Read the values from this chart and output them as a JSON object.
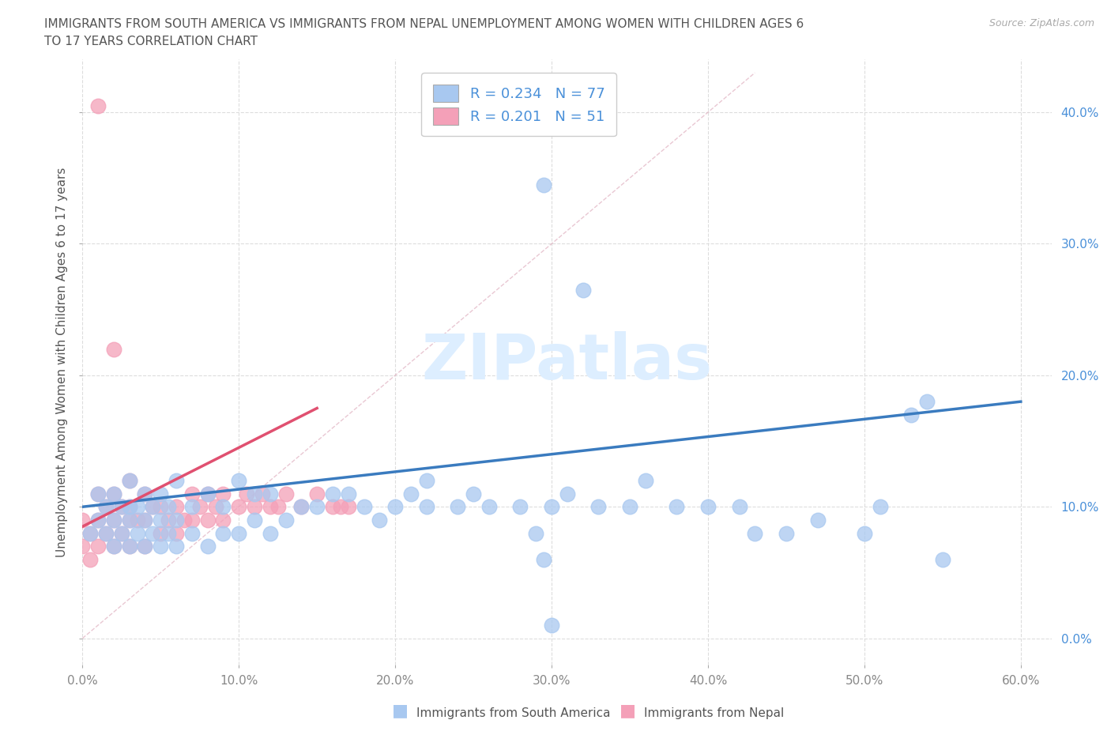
{
  "title_line1": "IMMIGRANTS FROM SOUTH AMERICA VS IMMIGRANTS FROM NEPAL UNEMPLOYMENT AMONG WOMEN WITH CHILDREN AGES 6",
  "title_line2": "TO 17 YEARS CORRELATION CHART",
  "source": "Source: ZipAtlas.com",
  "ylabel": "Unemployment Among Women with Children Ages 6 to 17 years",
  "xlim": [
    0.0,
    0.62
  ],
  "ylim": [
    -0.02,
    0.44
  ],
  "xticks": [
    0.0,
    0.1,
    0.2,
    0.3,
    0.4,
    0.5,
    0.6
  ],
  "xticklabels": [
    "0.0%",
    "10.0%",
    "20.0%",
    "30.0%",
    "40.0%",
    "50.0%",
    "60.0%"
  ],
  "yticks": [
    0.0,
    0.1,
    0.2,
    0.3,
    0.4
  ],
  "yticklabels": [
    "0.0%",
    "10.0%",
    "20.0%",
    "30.0%",
    "40.0%"
  ],
  "legend_text_sa": "R = 0.234   N = 77",
  "legend_text_np": "R = 0.201   N = 51",
  "color_sa": "#a8c8f0",
  "color_np": "#f4a0b8",
  "trendline_sa_color": "#3a7bbf",
  "trendline_np_color": "#e05070",
  "trendline_np_dashed_color": "#e8b0c0",
  "background_color": "#ffffff",
  "grid_color": "#dddddd",
  "title_color": "#555555",
  "watermark_color": "#ddeeff",
  "sa_x": [
    0.005,
    0.01,
    0.01,
    0.015,
    0.015,
    0.02,
    0.02,
    0.02,
    0.025,
    0.025,
    0.03,
    0.03,
    0.03,
    0.03,
    0.035,
    0.035,
    0.04,
    0.04,
    0.04,
    0.045,
    0.045,
    0.05,
    0.05,
    0.05,
    0.055,
    0.055,
    0.06,
    0.06,
    0.06,
    0.07,
    0.07,
    0.08,
    0.08,
    0.09,
    0.09,
    0.1,
    0.1,
    0.11,
    0.11,
    0.12,
    0.12,
    0.13,
    0.14,
    0.15,
    0.16,
    0.17,
    0.18,
    0.19,
    0.2,
    0.21,
    0.22,
    0.22,
    0.24,
    0.25,
    0.26,
    0.28,
    0.29,
    0.3,
    0.31,
    0.33,
    0.35,
    0.36,
    0.38,
    0.4,
    0.42,
    0.43,
    0.45,
    0.47,
    0.5,
    0.51,
    0.53,
    0.54,
    0.55,
    0.295,
    0.32,
    0.295,
    0.3
  ],
  "sa_y": [
    0.08,
    0.09,
    0.11,
    0.08,
    0.1,
    0.07,
    0.09,
    0.11,
    0.08,
    0.1,
    0.07,
    0.09,
    0.1,
    0.12,
    0.08,
    0.1,
    0.07,
    0.09,
    0.11,
    0.08,
    0.1,
    0.07,
    0.09,
    0.11,
    0.08,
    0.1,
    0.07,
    0.09,
    0.12,
    0.08,
    0.1,
    0.07,
    0.11,
    0.08,
    0.1,
    0.08,
    0.12,
    0.09,
    0.11,
    0.08,
    0.11,
    0.09,
    0.1,
    0.1,
    0.11,
    0.11,
    0.1,
    0.09,
    0.1,
    0.11,
    0.1,
    0.12,
    0.1,
    0.11,
    0.1,
    0.1,
    0.08,
    0.1,
    0.11,
    0.1,
    0.1,
    0.12,
    0.1,
    0.1,
    0.1,
    0.08,
    0.08,
    0.09,
    0.08,
    0.1,
    0.17,
    0.18,
    0.06,
    0.345,
    0.265,
    0.06,
    0.01
  ],
  "np_x": [
    0.0,
    0.0,
    0.005,
    0.005,
    0.01,
    0.01,
    0.01,
    0.015,
    0.015,
    0.02,
    0.02,
    0.02,
    0.025,
    0.025,
    0.03,
    0.03,
    0.03,
    0.03,
    0.035,
    0.04,
    0.04,
    0.04,
    0.045,
    0.05,
    0.05,
    0.055,
    0.06,
    0.06,
    0.065,
    0.07,
    0.07,
    0.075,
    0.08,
    0.08,
    0.085,
    0.09,
    0.09,
    0.1,
    0.105,
    0.11,
    0.115,
    0.12,
    0.125,
    0.13,
    0.14,
    0.15,
    0.16,
    0.165,
    0.17,
    0.02,
    0.01
  ],
  "np_y": [
    0.07,
    0.09,
    0.06,
    0.08,
    0.07,
    0.09,
    0.11,
    0.08,
    0.1,
    0.07,
    0.09,
    0.11,
    0.08,
    0.1,
    0.07,
    0.09,
    0.1,
    0.12,
    0.09,
    0.07,
    0.09,
    0.11,
    0.1,
    0.08,
    0.1,
    0.09,
    0.08,
    0.1,
    0.09,
    0.09,
    0.11,
    0.1,
    0.09,
    0.11,
    0.1,
    0.09,
    0.11,
    0.1,
    0.11,
    0.1,
    0.11,
    0.1,
    0.1,
    0.11,
    0.1,
    0.11,
    0.1,
    0.1,
    0.1,
    0.22,
    0.405
  ]
}
